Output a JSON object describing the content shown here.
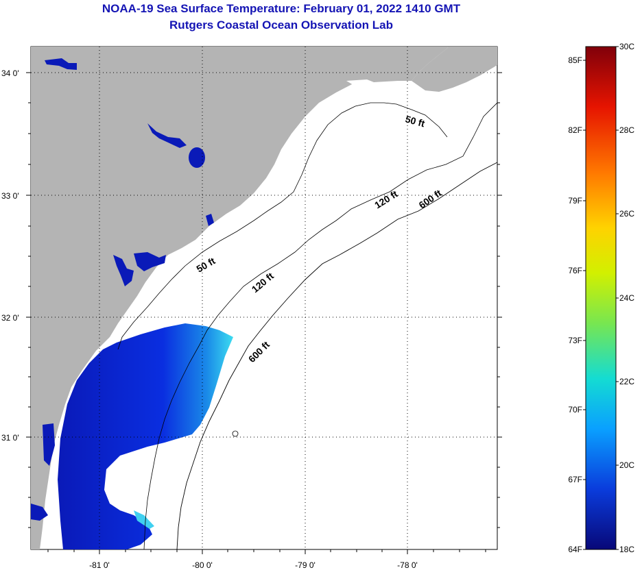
{
  "title": {
    "line1": "NOAA-19 Sea Surface Temperature:  February 01, 2022 1410 GMT",
    "line2": "Rutgers Coastal Ocean Observation Lab"
  },
  "map": {
    "lat_labels": [
      "34 0'",
      "33 0'",
      "32 0'",
      "31 0'"
    ],
    "lon_labels": [
      "-81 0'",
      "-80 0'",
      "-79 0'",
      "-78 0'"
    ],
    "contour_labels": [
      "50 ft",
      "50 ft",
      "120 ft",
      "120 ft",
      "600 ft",
      "600 ft"
    ],
    "colors": {
      "land": "#b4b4b4",
      "cloud_nodata": "#ffffff",
      "cold_water": "#0a1ec8",
      "warm_water": "#3cdcf0"
    }
  },
  "colorbar": {
    "fahrenheit_labels": [
      "85F",
      "82F",
      "79F",
      "76F",
      "73F",
      "70F",
      "67F",
      "64F"
    ],
    "celsius_labels": [
      "30C",
      "28C",
      "26C",
      "24C",
      "22C",
      "20C",
      "18C"
    ],
    "stops": [
      "#80000a",
      "#e61400",
      "#ff7800",
      "#ffd200",
      "#d2f000",
      "#78e650",
      "#14dcd2",
      "#0aa0ff",
      "#0a3cdc",
      "#080878"
    ]
  }
}
